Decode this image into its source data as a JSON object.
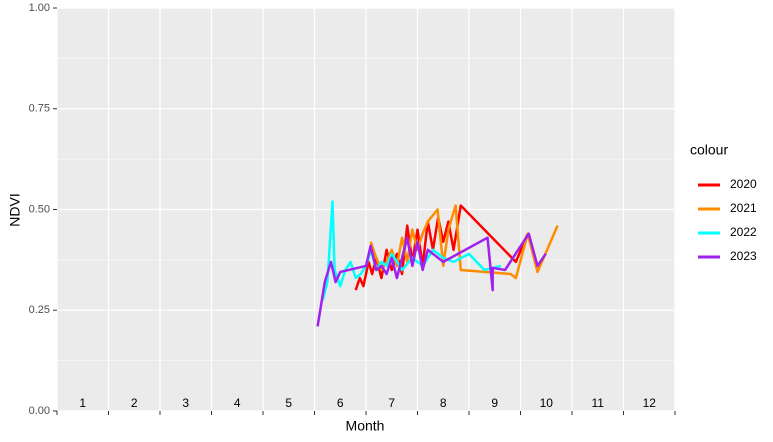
{
  "chart_data": {
    "type": "line",
    "xlabel": "Month",
    "ylabel": "NDVI",
    "xlim": [
      0.5,
      12.5
    ],
    "xticks": [
      0.5,
      1.5,
      2.5,
      3.5,
      4.5,
      5.5,
      6.5,
      7.5,
      8.5,
      9.5,
      10.5,
      11.5,
      12.5
    ],
    "month_labels": [
      1,
      2,
      3,
      4,
      5,
      6,
      7,
      8,
      9,
      10,
      11,
      12
    ],
    "ylim": [
      0,
      1
    ],
    "yticks": [
      {
        "value": 0,
        "label": "0.00"
      },
      {
        "value": 0.25,
        "label": "0.25"
      },
      {
        "value": 0.5,
        "label": "0.50"
      },
      {
        "value": 0.75,
        "label": "0.75"
      },
      {
        "value": 1,
        "label": "1.00"
      }
    ],
    "grid": true,
    "legend_title": "colour",
    "legend": "right",
    "series": [
      {
        "name": "2020",
        "color": "#ff0000",
        "x": [
          6.3,
          6.38,
          6.45,
          6.55,
          6.62,
          6.7,
          6.8,
          6.9,
          7.0,
          7.1,
          7.2,
          7.3,
          7.4,
          7.5,
          7.6,
          7.7,
          7.8,
          7.9,
          8.0,
          8.1,
          8.2,
          8.34,
          9.41,
          9.64
        ],
        "values": [
          0.3,
          0.33,
          0.31,
          0.37,
          0.34,
          0.38,
          0.33,
          0.4,
          0.35,
          0.39,
          0.34,
          0.46,
          0.37,
          0.45,
          0.36,
          0.47,
          0.4,
          0.48,
          0.42,
          0.47,
          0.4,
          0.51,
          0.37,
          0.44
        ]
      },
      {
        "name": "2021",
        "color": "#ff8c00",
        "x": [
          6.59,
          6.7,
          6.8,
          6.9,
          7.0,
          7.1,
          7.2,
          7.3,
          7.4,
          7.5,
          7.6,
          7.7,
          7.89,
          8.0,
          8.1,
          8.24,
          8.34,
          9.31,
          9.41,
          9.64,
          9.83,
          10.22
        ],
        "values": [
          0.42,
          0.38,
          0.35,
          0.37,
          0.4,
          0.36,
          0.43,
          0.37,
          0.45,
          0.4,
          0.44,
          0.47,
          0.5,
          0.36,
          0.45,
          0.51,
          0.35,
          0.34,
          0.33,
          0.44,
          0.345,
          0.46
        ]
      },
      {
        "name": "2022",
        "color": "#00ffff",
        "x": [
          5.66,
          5.75,
          5.85,
          5.89,
          6.0,
          6.1,
          6.2,
          6.3,
          6.4,
          6.5,
          6.6,
          6.7,
          6.8,
          6.9,
          7.0,
          7.2,
          7.4,
          7.6,
          7.8,
          8.0,
          8.2,
          8.5,
          8.8,
          9.12
        ],
        "values": [
          0.275,
          0.32,
          0.52,
          0.35,
          0.31,
          0.35,
          0.37,
          0.33,
          0.34,
          0.36,
          0.4,
          0.35,
          0.37,
          0.36,
          0.39,
          0.35,
          0.38,
          0.36,
          0.4,
          0.38,
          0.37,
          0.39,
          0.35,
          0.36
        ]
      },
      {
        "name": "2023",
        "color": "#a020f0",
        "x": [
          5.56,
          5.7,
          5.82,
          5.91,
          6.0,
          6.5,
          6.59,
          6.7,
          6.8,
          6.9,
          7.0,
          7.1,
          7.3,
          7.4,
          7.5,
          7.6,
          7.7,
          8.0,
          8.86,
          8.96,
          8.96,
          9.2,
          9.66,
          9.83,
          9.99
        ],
        "values": [
          0.21,
          0.32,
          0.37,
          0.32,
          0.345,
          0.36,
          0.41,
          0.35,
          0.36,
          0.34,
          0.38,
          0.33,
          0.43,
          0.36,
          0.42,
          0.35,
          0.4,
          0.37,
          0.43,
          0.3,
          0.355,
          0.35,
          0.44,
          0.36,
          0.39
        ]
      }
    ]
  }
}
